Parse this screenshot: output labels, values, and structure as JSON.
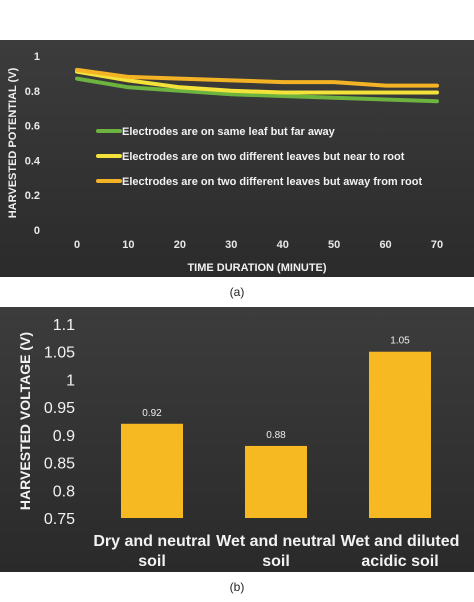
{
  "chart_data": [
    {
      "panel": "(a)",
      "type": "line",
      "xlabel": "TIME DURATION (MINUTE)",
      "ylabel": "HARVESTED POTENTIAL (V)",
      "x": [
        0,
        10,
        20,
        30,
        40,
        50,
        60,
        70
      ],
      "x_ticks": [
        "0",
        "10",
        "20",
        "30",
        "40",
        "50",
        "60",
        "70"
      ],
      "y_ticks": [
        "0",
        "0.2",
        "0.4",
        "0.6",
        "0.8",
        "1"
      ],
      "ylim": [
        0,
        1
      ],
      "grid": false,
      "legend_position": "center-right",
      "series": [
        {
          "name": "Electrodes are on same leaf but far away",
          "color": "#6cb33f",
          "values": [
            0.87,
            0.82,
            0.8,
            0.78,
            0.77,
            0.76,
            0.75,
            0.74
          ]
        },
        {
          "name": "Electrodes are on two different leaves but near to root",
          "color": "#f2e23a",
          "values": [
            0.91,
            0.86,
            0.82,
            0.8,
            0.79,
            0.79,
            0.79,
            0.79
          ]
        },
        {
          "name": "Electrodes are on two different leaves but away from root",
          "color": "#f3b324",
          "values": [
            0.92,
            0.88,
            0.87,
            0.86,
            0.85,
            0.85,
            0.83,
            0.83
          ]
        }
      ]
    },
    {
      "panel": "(b)",
      "type": "bar",
      "ylabel": "HARVESTED VOLTAGE (V)",
      "categories": [
        [
          "Dry and neutral",
          "soil"
        ],
        [
          "Wet and neutral",
          "soil"
        ],
        [
          "Wet and diluted",
          "acidic soil"
        ]
      ],
      "values": [
        0.92,
        0.88,
        1.05
      ],
      "data_labels": [
        "0.92",
        "0.88",
        "1.05"
      ],
      "y_ticks": [
        "0.75",
        "0.8",
        "0.85",
        "0.9",
        "0.95",
        "1",
        "1.05",
        "1.1"
      ],
      "ylim": [
        0.75,
        1.1
      ],
      "bar_color": "#f6b922",
      "grid": false
    }
  ],
  "captions": {
    "a": "(a)",
    "b": "(b)"
  }
}
